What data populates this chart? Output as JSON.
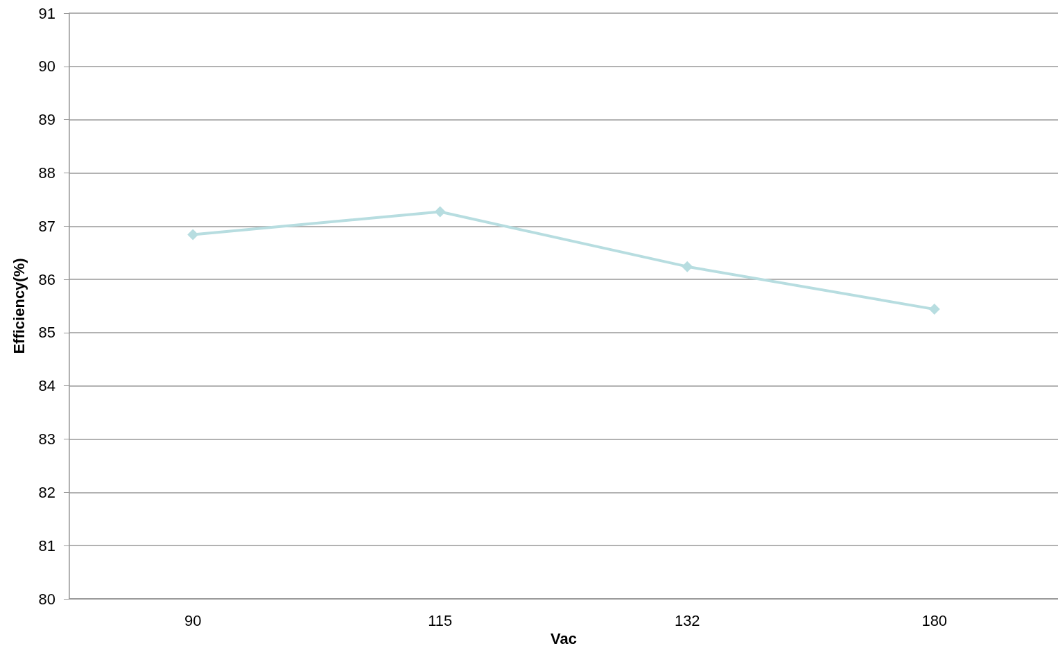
{
  "chart_data": {
    "type": "line",
    "xlabel": "Vac",
    "ylabel": "Efficiency(%)",
    "categories": [
      "90",
      "115",
      "132",
      "180"
    ],
    "series": [
      {
        "color": "#b7dde0",
        "values": [
          86.84,
          87.27,
          86.24,
          85.44
        ]
      }
    ],
    "ylim": [
      80,
      91
    ],
    "yticks": [
      80,
      81,
      82,
      83,
      84,
      85,
      86,
      87,
      88,
      89,
      90,
      91
    ],
    "grid": "y",
    "marker": "diamond",
    "line_style": "solid"
  }
}
